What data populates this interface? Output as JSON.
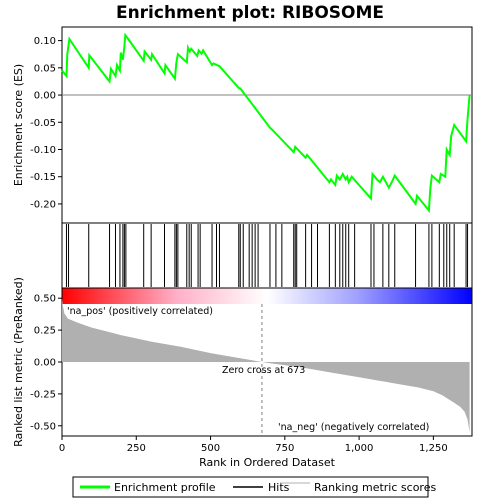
{
  "chart_data": {
    "type": "line",
    "title": "Enrichment plot: RIBOSOME",
    "es_panel": {
      "ylabel": "Enrichment score (ES)",
      "ylim": [
        -0.235,
        0.125
      ],
      "yticks": [
        "0.10",
        "0.05",
        "0.00",
        "-0.05",
        "-0.10",
        "-0.15",
        "-0.20"
      ],
      "ytick_values": [
        0.1,
        0.05,
        0.0,
        -0.05,
        -0.1,
        -0.15,
        -0.2
      ],
      "color": "#00ff00",
      "series": [
        {
          "name": "Enrichment profile",
          "x": [
            0,
            15,
            18,
            25,
            90,
            92,
            160,
            165,
            180,
            185,
            195,
            198,
            205,
            210,
            213,
            220,
            275,
            278,
            300,
            303,
            345,
            348,
            380,
            383,
            385,
            390,
            420,
            424,
            430,
            435,
            455,
            460,
            470,
            475,
            505,
            510,
            530,
            535,
            595,
            600,
            700,
            710,
            780,
            785,
            820,
            825,
            900,
            905,
            920,
            925,
            935,
            945,
            955,
            960,
            965,
            975,
            1040,
            1045,
            1050,
            1060,
            1070,
            1080,
            1100,
            1110,
            1120,
            1190,
            1195,
            1235,
            1240,
            1245,
            1270,
            1275,
            1290,
            1295,
            1305,
            1310,
            1320,
            1360,
            1365,
            1372
          ],
          "y": [
            0.045,
            0.035,
            0.075,
            0.103,
            0.05,
            0.073,
            0.025,
            0.048,
            0.035,
            0.055,
            0.045,
            0.078,
            0.065,
            0.09,
            0.11,
            0.105,
            0.063,
            0.08,
            0.065,
            0.075,
            0.04,
            0.055,
            0.03,
            0.048,
            0.06,
            0.075,
            0.06,
            0.087,
            0.08,
            0.085,
            0.072,
            0.082,
            0.076,
            0.082,
            0.055,
            0.058,
            0.053,
            0.05,
            0.013,
            0.012,
            -0.06,
            -0.065,
            -0.105,
            -0.095,
            -0.115,
            -0.11,
            -0.16,
            -0.155,
            -0.165,
            -0.148,
            -0.155,
            -0.145,
            -0.155,
            -0.15,
            -0.16,
            -0.15,
            -0.19,
            -0.145,
            -0.148,
            -0.155,
            -0.16,
            -0.15,
            -0.17,
            -0.16,
            -0.148,
            -0.2,
            -0.185,
            -0.212,
            -0.17,
            -0.148,
            -0.16,
            -0.145,
            -0.15,
            -0.1,
            -0.11,
            -0.075,
            -0.055,
            -0.085,
            -0.045,
            0.0
          ]
        }
      ]
    },
    "hits": {
      "label": "Hits",
      "positions": [
        15,
        22,
        90,
        160,
        180,
        195,
        205,
        210,
        215,
        275,
        300,
        345,
        380,
        385,
        390,
        420,
        428,
        435,
        458,
        465,
        505,
        520,
        530,
        595,
        600,
        610,
        630,
        640,
        650,
        660,
        700,
        720,
        740,
        780,
        785,
        790,
        820,
        840,
        860,
        900,
        920,
        935,
        945,
        955,
        965,
        985,
        1040,
        1050,
        1080,
        1100,
        1120,
        1190,
        1235,
        1245,
        1270,
        1285,
        1295,
        1305,
        1320,
        1360,
        1365
      ]
    },
    "metric_panel": {
      "ylabel": "Ranked list metric (PreRanked)",
      "ylim": [
        -0.58,
        0.58
      ],
      "yticks": [
        "0.50",
        "0.25",
        "0.00",
        "-0.25",
        "-0.50"
      ],
      "ytick_values": [
        0.5,
        0.25,
        0.0,
        -0.25,
        -0.5
      ],
      "curve_x": [
        0,
        3,
        8,
        20,
        50,
        100,
        150,
        200,
        300,
        400,
        500,
        600,
        673,
        700,
        800,
        900,
        1000,
        1100,
        1150,
        1200,
        1250,
        1280,
        1300,
        1320,
        1340,
        1355,
        1365,
        1372
      ],
      "curve_y": [
        0.5,
        0.44,
        0.38,
        0.34,
        0.31,
        0.27,
        0.24,
        0.21,
        0.16,
        0.12,
        0.07,
        0.03,
        0.0,
        -0.01,
        -0.04,
        -0.08,
        -0.12,
        -0.16,
        -0.18,
        -0.2,
        -0.23,
        -0.26,
        -0.29,
        -0.32,
        -0.35,
        -0.39,
        -0.45,
        -0.55
      ],
      "zero_cross": 673,
      "zero_cross_label": "Zero cross at 673",
      "pos_label": "'na_pos' (positively correlated)",
      "neg_label": "'na_neg' (negatively correlated)",
      "fill_color": "#b0b0b0",
      "pos_label_color": "#ff0000",
      "neg_label_color": "#0000ff"
    },
    "xlabel": "Rank in Ordered Dataset",
    "xlim": [
      0,
      1380
    ],
    "xticks": [
      "0",
      "250",
      "500",
      "750",
      "1,000",
      "1,250"
    ],
    "xtick_values": [
      0,
      250,
      500,
      750,
      1000,
      1250
    ],
    "colorbar": {
      "from": "#ff0000",
      "mid": "#ffffff",
      "to": "#0000ff"
    }
  },
  "legend": {
    "items": [
      {
        "label": "Enrichment profile",
        "color": "#00ff00"
      },
      {
        "label": "Hits",
        "color": "#000000"
      },
      {
        "label": "Ranking metric scores",
        "color": "#b0b0b0"
      }
    ]
  }
}
